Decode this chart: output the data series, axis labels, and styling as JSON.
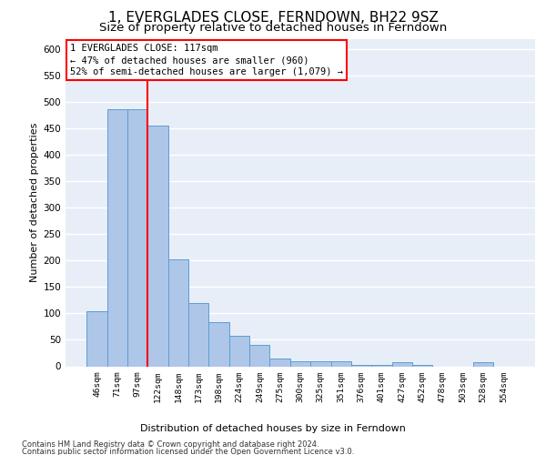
{
  "title": "1, EVERGLADES CLOSE, FERNDOWN, BH22 9SZ",
  "subtitle": "Size of property relative to detached houses in Ferndown",
  "xlabel": "Distribution of detached houses by size in Ferndown",
  "ylabel": "Number of detached properties",
  "footer_line1": "Contains HM Land Registry data © Crown copyright and database right 2024.",
  "footer_line2": "Contains public sector information licensed under the Open Government Licence v3.0.",
  "annotation_line1": "1 EVERGLADES CLOSE: 117sqm",
  "annotation_line2": "← 47% of detached houses are smaller (960)",
  "annotation_line3": "52% of semi-detached houses are larger (1,079) →",
  "categories": [
    "46sqm",
    "71sqm",
    "97sqm",
    "122sqm",
    "148sqm",
    "173sqm",
    "198sqm",
    "224sqm",
    "249sqm",
    "275sqm",
    "300sqm",
    "325sqm",
    "351sqm",
    "376sqm",
    "401sqm",
    "427sqm",
    "452sqm",
    "478sqm",
    "503sqm",
    "528sqm",
    "554sqm"
  ],
  "values": [
    105,
    487,
    487,
    455,
    203,
    120,
    83,
    57,
    40,
    15,
    10,
    10,
    10,
    2,
    2,
    7,
    2,
    0,
    0,
    7,
    0
  ],
  "bar_color": "#aec6e8",
  "bar_edge_color": "#5a9fd4",
  "red_line_x": 2.5,
  "ylim": [
    0,
    620
  ],
  "yticks": [
    0,
    50,
    100,
    150,
    200,
    250,
    300,
    350,
    400,
    450,
    500,
    550,
    600
  ],
  "bg_color": "#e8eef8",
  "grid_color": "#ffffff",
  "title_fontsize": 11,
  "subtitle_fontsize": 9.5
}
